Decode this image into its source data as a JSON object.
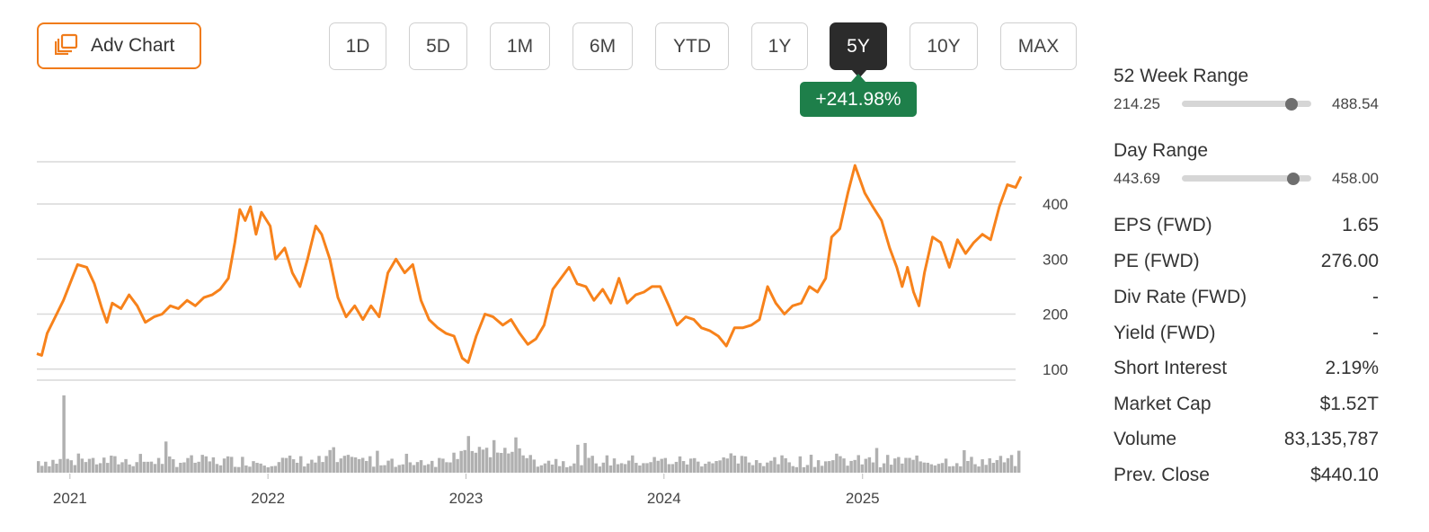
{
  "toolbar": {
    "adv_chart_label": "Adv Chart",
    "ranges": [
      "1D",
      "5D",
      "1M",
      "6M",
      "YTD",
      "1Y",
      "5Y",
      "10Y",
      "MAX"
    ],
    "active_range": "5Y",
    "change_badge": "+241.98%",
    "change_color": "#1e7f4a"
  },
  "chart_data": {
    "type": "line",
    "series": [
      {
        "color": "#f7821b",
        "points": [
          [
            "2020-11-01",
            128
          ],
          [
            "2020-11-10",
            125
          ],
          [
            "2020-11-20",
            165
          ],
          [
            "2020-12-05",
            195
          ],
          [
            "2020-12-20",
            225
          ],
          [
            "2021-01-05",
            265
          ],
          [
            "2021-01-15",
            290
          ],
          [
            "2021-02-01",
            285
          ],
          [
            "2021-02-15",
            255
          ],
          [
            "2021-03-01",
            210
          ],
          [
            "2021-03-10",
            185
          ],
          [
            "2021-03-20",
            220
          ],
          [
            "2021-04-05",
            210
          ],
          [
            "2021-04-20",
            235
          ],
          [
            "2021-05-05",
            215
          ],
          [
            "2021-05-20",
            185
          ],
          [
            "2021-06-05",
            195
          ],
          [
            "2021-06-20",
            200
          ],
          [
            "2021-07-05",
            215
          ],
          [
            "2021-07-20",
            210
          ],
          [
            "2021-08-05",
            225
          ],
          [
            "2021-08-20",
            215
          ],
          [
            "2021-09-05",
            230
          ],
          [
            "2021-09-20",
            235
          ],
          [
            "2021-10-05",
            245
          ],
          [
            "2021-10-20",
            265
          ],
          [
            "2021-11-01",
            330
          ],
          [
            "2021-11-10",
            390
          ],
          [
            "2021-11-20",
            370
          ],
          [
            "2021-11-30",
            395
          ],
          [
            "2021-12-10",
            345
          ],
          [
            "2021-12-20",
            385
          ],
          [
            "2022-01-05",
            360
          ],
          [
            "2022-01-15",
            300
          ],
          [
            "2022-02-01",
            320
          ],
          [
            "2022-02-15",
            275
          ],
          [
            "2022-03-01",
            250
          ],
          [
            "2022-03-15",
            300
          ],
          [
            "2022-03-30",
            360
          ],
          [
            "2022-04-10",
            345
          ],
          [
            "2022-04-25",
            300
          ],
          [
            "2022-05-10",
            230
          ],
          [
            "2022-05-25",
            195
          ],
          [
            "2022-06-10",
            215
          ],
          [
            "2022-06-25",
            190
          ],
          [
            "2022-07-10",
            215
          ],
          [
            "2022-07-25",
            195
          ],
          [
            "2022-08-10",
            275
          ],
          [
            "2022-08-25",
            300
          ],
          [
            "2022-09-10",
            275
          ],
          [
            "2022-09-25",
            290
          ],
          [
            "2022-10-10",
            225
          ],
          [
            "2022-10-25",
            190
          ],
          [
            "2022-11-10",
            175
          ],
          [
            "2022-11-25",
            165
          ],
          [
            "2022-12-10",
            160
          ],
          [
            "2022-12-25",
            120
          ],
          [
            "2023-01-05",
            112
          ],
          [
            "2023-01-20",
            160
          ],
          [
            "2023-02-05",
            200
          ],
          [
            "2023-02-20",
            195
          ],
          [
            "2023-03-10",
            180
          ],
          [
            "2023-03-25",
            190
          ],
          [
            "2023-04-10",
            165
          ],
          [
            "2023-04-25",
            145
          ],
          [
            "2023-05-10",
            155
          ],
          [
            "2023-05-25",
            180
          ],
          [
            "2023-06-10",
            245
          ],
          [
            "2023-06-25",
            265
          ],
          [
            "2023-07-10",
            285
          ],
          [
            "2023-07-25",
            255
          ],
          [
            "2023-08-10",
            250
          ],
          [
            "2023-08-25",
            225
          ],
          [
            "2023-09-10",
            245
          ],
          [
            "2023-09-25",
            220
          ],
          [
            "2023-10-10",
            265
          ],
          [
            "2023-10-25",
            220
          ],
          [
            "2023-11-10",
            235
          ],
          [
            "2023-11-25",
            240
          ],
          [
            "2023-12-10",
            250
          ],
          [
            "2023-12-25",
            250
          ],
          [
            "2024-01-10",
            215
          ],
          [
            "2024-01-25",
            180
          ],
          [
            "2024-02-10",
            195
          ],
          [
            "2024-02-25",
            190
          ],
          [
            "2024-03-10",
            175
          ],
          [
            "2024-03-25",
            170
          ],
          [
            "2024-04-10",
            160
          ],
          [
            "2024-04-25",
            142
          ],
          [
            "2024-05-10",
            175
          ],
          [
            "2024-05-25",
            175
          ],
          [
            "2024-06-10",
            180
          ],
          [
            "2024-06-25",
            190
          ],
          [
            "2024-07-10",
            250
          ],
          [
            "2024-07-25",
            220
          ],
          [
            "2024-08-10",
            200
          ],
          [
            "2024-08-25",
            215
          ],
          [
            "2024-09-10",
            220
          ],
          [
            "2024-09-25",
            250
          ],
          [
            "2024-10-10",
            240
          ],
          [
            "2024-10-25",
            265
          ],
          [
            "2024-11-05",
            340
          ],
          [
            "2024-11-20",
            355
          ],
          [
            "2024-12-05",
            420
          ],
          [
            "2024-12-18",
            470
          ],
          [
            "2025-01-05",
            420
          ],
          [
            "2025-01-20",
            395
          ],
          [
            "2025-02-05",
            370
          ],
          [
            "2025-02-20",
            320
          ],
          [
            "2025-03-05",
            285
          ],
          [
            "2025-03-15",
            250
          ],
          [
            "2025-03-25",
            285
          ],
          [
            "2025-04-05",
            240
          ],
          [
            "2025-04-15",
            215
          ],
          [
            "2025-04-25",
            275
          ],
          [
            "2025-05-10",
            340
          ],
          [
            "2025-05-25",
            330
          ],
          [
            "2025-06-10",
            285
          ],
          [
            "2025-06-25",
            335
          ],
          [
            "2025-07-10",
            310
          ],
          [
            "2025-07-25",
            330
          ],
          [
            "2025-08-10",
            345
          ],
          [
            "2025-08-25",
            335
          ],
          [
            "2025-09-10",
            395
          ],
          [
            "2025-09-25",
            435
          ],
          [
            "2025-10-10",
            430
          ],
          [
            "2025-10-20",
            450
          ]
        ]
      }
    ],
    "y_ticks": [
      100,
      200,
      300,
      400
    ],
    "ylim": [
      80,
      480
    ],
    "x_ticks": [
      "2021",
      "2022",
      "2023",
      "2024",
      "2025"
    ],
    "xlim": [
      "2020-11-01",
      "2025-10-20"
    ],
    "grid": true,
    "volume_color": "#b0b0b0"
  },
  "stats": {
    "week52": {
      "title": "52 Week Range",
      "low": "214.25",
      "high": "488.54",
      "position": 0.85
    },
    "day": {
      "title": "Day Range",
      "low": "443.69",
      "high": "458.00",
      "position": 0.86
    },
    "rows": [
      {
        "label": "EPS (FWD)",
        "value": "1.65"
      },
      {
        "label": "PE (FWD)",
        "value": "276.00"
      },
      {
        "label": "Div Rate (FWD)",
        "value": "-"
      },
      {
        "label": "Yield (FWD)",
        "value": "-"
      },
      {
        "label": "Short Interest",
        "value": "2.19%"
      },
      {
        "label": "Market Cap",
        "value": "$1.52T"
      },
      {
        "label": "Volume",
        "value": "83,135,787"
      },
      {
        "label": "Prev. Close",
        "value": "$440.10"
      }
    ]
  }
}
